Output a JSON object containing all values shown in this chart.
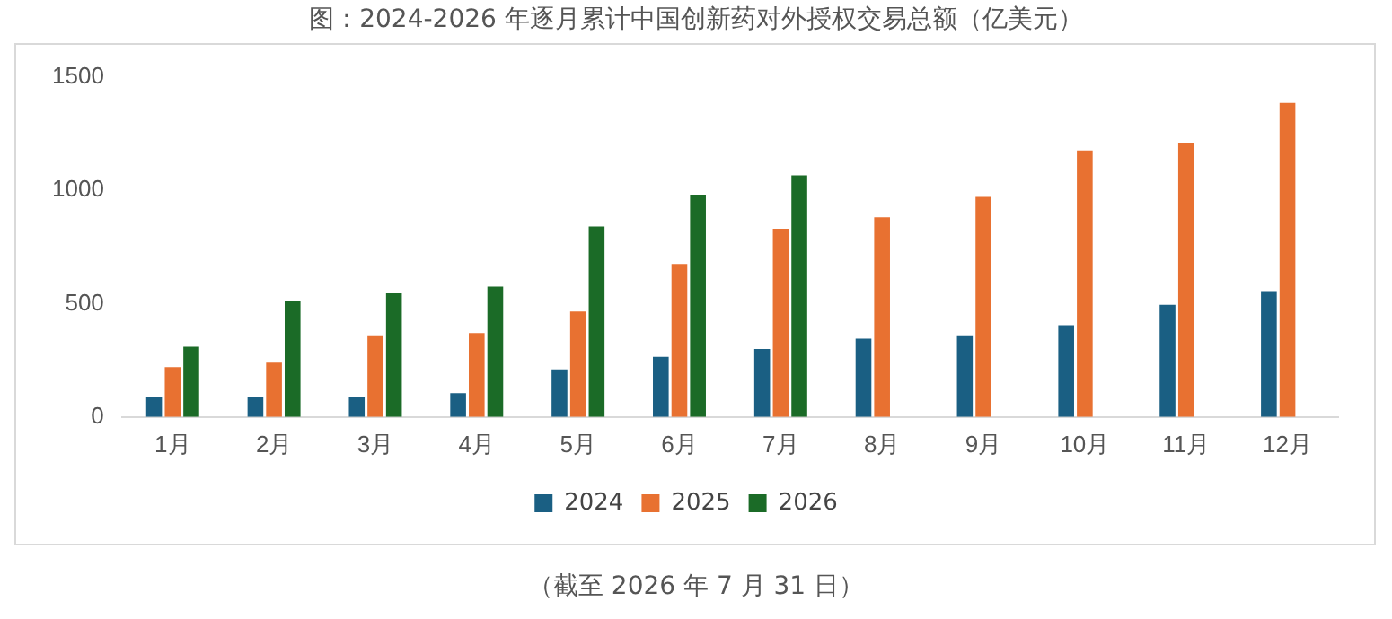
{
  "chart_data": {
    "type": "bar",
    "title": "图：2024-2026 年逐月累计中国创新药对外授权交易总额（亿美元）",
    "categories": [
      "1月",
      "2月",
      "3月",
      "4月",
      "5月",
      "6月",
      "7月",
      "8月",
      "9月",
      "10月",
      "11月",
      "12月"
    ],
    "series": [
      {
        "name": "2024",
        "color": "#1a5f83",
        "values": [
          90,
          90,
          90,
          105,
          210,
          265,
          300,
          345,
          360,
          405,
          495,
          555
        ]
      },
      {
        "name": "2025",
        "color": "#e87131",
        "values": [
          220,
          240,
          360,
          370,
          465,
          675,
          830,
          880,
          970,
          1175,
          1210,
          1385
        ]
      },
      {
        "name": "2026",
        "color": "#1b6b27",
        "values": [
          310,
          510,
          545,
          575,
          840,
          980,
          1065,
          null,
          null,
          null,
          null,
          null
        ]
      }
    ],
    "ylim": [
      0,
      1500
    ],
    "yticks": [
      0,
      500,
      1000,
      1500
    ],
    "grid": false,
    "legend": "bottom",
    "annotations": [
      "（截至 2026 年 7 月 31 日）"
    ]
  }
}
